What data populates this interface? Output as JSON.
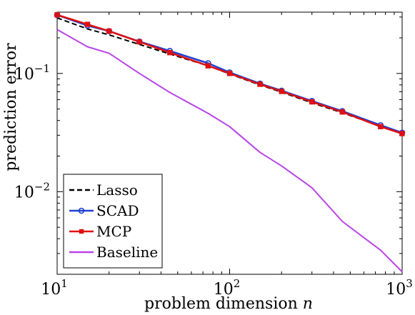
{
  "chart_data": {
    "type": "line",
    "xscale": "log",
    "yscale": "log",
    "xlim": [
      10,
      1000
    ],
    "ylim": [
      0.002,
      0.33
    ],
    "xlabel": "problem dimension",
    "xlabel_var": "n",
    "ylabel": "prediction error",
    "grid": false,
    "legend_position": "bottom-left",
    "x_ticks": [
      {
        "value": 10,
        "base": "10",
        "exp": "1"
      },
      {
        "value": 100,
        "base": "10",
        "exp": "2"
      },
      {
        "value": 1000,
        "base": "10",
        "exp": "3"
      }
    ],
    "y_ticks": [
      {
        "value": 0.1,
        "base": "10",
        "exp": "−1"
      },
      {
        "value": 0.01,
        "base": "10",
        "exp": "−2"
      }
    ],
    "series": [
      {
        "name": "Lasso",
        "color": "#000000",
        "style": "dashed",
        "marker": "none",
        "x": [
          10,
          15,
          20,
          30,
          45,
          75,
          100,
          150,
          200,
          300,
          450,
          750,
          1000
        ],
        "y": [
          0.295,
          0.238,
          0.212,
          0.176,
          0.146,
          0.116,
          0.099,
          0.08,
          0.0695,
          0.0565,
          0.0465,
          0.0358,
          0.031
        ]
      },
      {
        "name": "SCAD",
        "color": "#2040d0",
        "style": "solid",
        "marker": "circle",
        "x": [
          10,
          15,
          20,
          30,
          45,
          75,
          100,
          150,
          200,
          300,
          450,
          750,
          1000
        ],
        "y": [
          0.312,
          0.254,
          0.228,
          0.186,
          0.155,
          0.122,
          0.102,
          0.082,
          0.0715,
          0.0585,
          0.048,
          0.0365,
          0.0315
        ]
      },
      {
        "name": "MCP",
        "color": "#e01010",
        "style": "solid",
        "marker": "square",
        "x": [
          10,
          15,
          20,
          30,
          45,
          75,
          100,
          150,
          200,
          300,
          450,
          750,
          1000
        ],
        "y": [
          0.313,
          0.26,
          0.228,
          0.185,
          0.15,
          0.116,
          0.1,
          0.081,
          0.0705,
          0.0575,
          0.0472,
          0.0355,
          0.031
        ]
      },
      {
        "name": "Baseline",
        "color": "#b844e8",
        "style": "solid",
        "marker": "none",
        "x": [
          10,
          15,
          20,
          30,
          45,
          75,
          100,
          150,
          200,
          300,
          450,
          750,
          1000
        ],
        "y": [
          0.235,
          0.168,
          0.148,
          0.1,
          0.069,
          0.046,
          0.0355,
          0.0215,
          0.0165,
          0.0108,
          0.0056,
          0.0032,
          0.0021
        ]
      }
    ]
  }
}
